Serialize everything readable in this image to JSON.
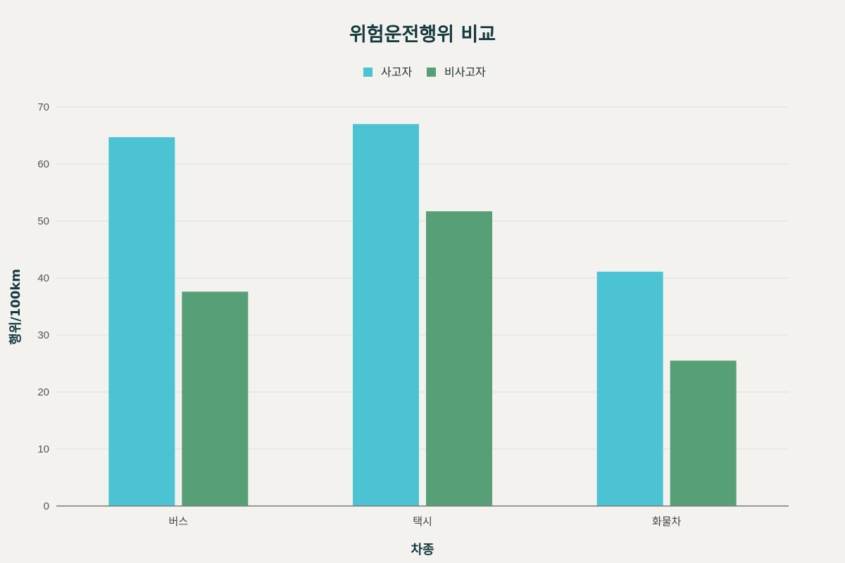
{
  "chart_data": {
    "type": "bar",
    "title": "위험운전행위 비교",
    "xlabel": "차종",
    "ylabel": "행위/100km",
    "categories": [
      "버스",
      "택시",
      "화물차"
    ],
    "series": [
      {
        "name": "사고자",
        "values": [
          64.7,
          67.0,
          41.1
        ],
        "color": "#4bc3d3"
      },
      {
        "name": "비사고자",
        "values": [
          37.6,
          51.7,
          25.5
        ],
        "color": "#57a077"
      }
    ],
    "ylim": [
      0,
      70
    ],
    "yticks": [
      "0",
      "10",
      "20",
      "30",
      "40",
      "50",
      "60",
      "70"
    ],
    "grid": true,
    "legend_position": "top-center"
  }
}
